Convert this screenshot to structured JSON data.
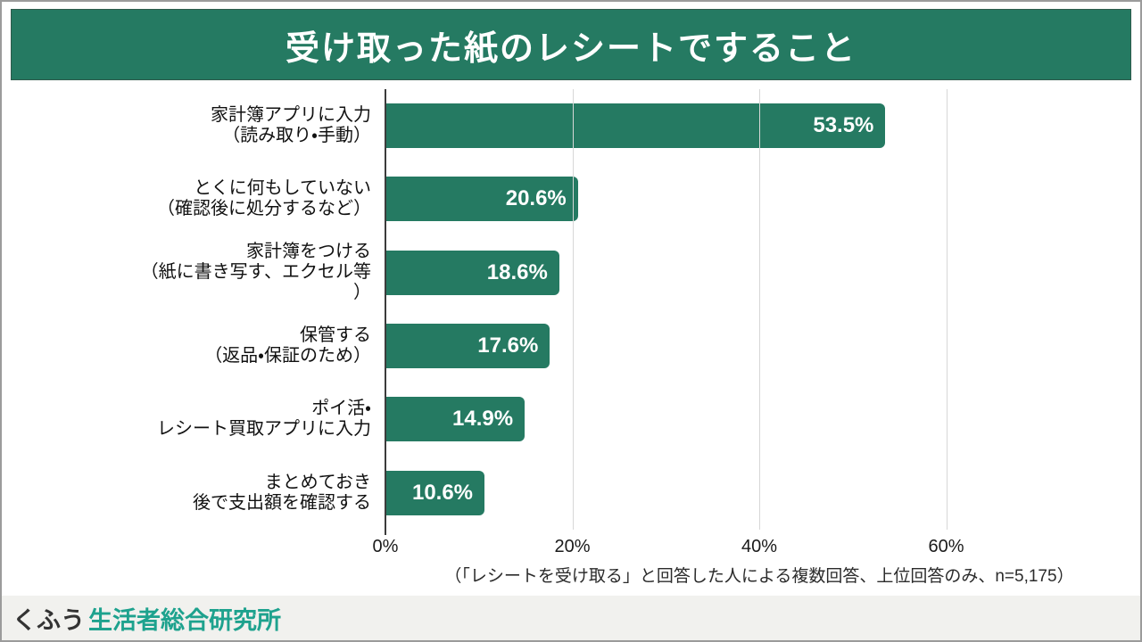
{
  "header": {
    "title": "受け取った紙のレシートですること",
    "background": "#257a62"
  },
  "chart_data": {
    "type": "bar",
    "orientation": "horizontal",
    "title": "受け取った紙のレシートですること",
    "categories": [
      "家計簿アプリに入力\n（読み取り・手動）",
      "とくに何もしていない\n（確認後に処分するなど）",
      "家計簿をつける\n（紙に書き写す、エクセル等\n）",
      "保管する\n（返品・保証のため）",
      "ポイ活・\nレシート買取アプリに入力",
      "まとめておき\n後で支出額を確認する"
    ],
    "values": [
      53.5,
      20.6,
      18.6,
      17.6,
      14.9,
      10.6
    ],
    "value_labels": [
      "53.5%",
      "20.6%",
      "18.6%",
      "17.6%",
      "14.9%",
      "10.6%"
    ],
    "xlabel": "",
    "ylabel": "",
    "xlim": [
      0,
      80
    ],
    "xticks": [
      {
        "value": 0,
        "label": "0%"
      },
      {
        "value": 20,
        "label": "20%"
      },
      {
        "value": 40,
        "label": "40%"
      },
      {
        "value": 60,
        "label": "60%"
      }
    ],
    "grid": "vertical",
    "legend": "none",
    "bar_color": "#257a62",
    "footnote": "（「レシートを受け取る」と回答した人による複数回答、上位回答のみ、n=5,175）"
  },
  "footer": {
    "logo_prefix": "くふう",
    "logo_suffix": "生活者総合研究所",
    "accent_color": "#1ea28e",
    "background": "#f1f1ee"
  }
}
